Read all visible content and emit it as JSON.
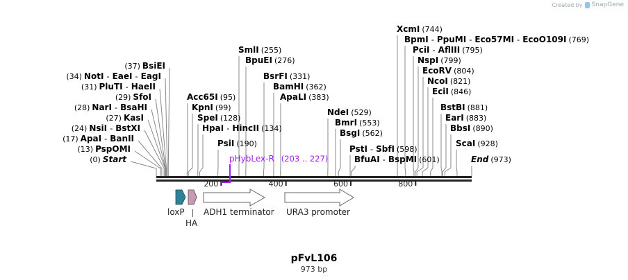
{
  "logo": {
    "created_by": "Created by",
    "brand": "SnapGene"
  },
  "plasmid": {
    "name": "pFvL106",
    "length_label": "973 bp",
    "length": 973
  },
  "ruler": [
    {
      "pos": 200,
      "label": "200"
    },
    {
      "pos": 400,
      "label": "400"
    },
    {
      "pos": 600,
      "label": "600"
    },
    {
      "pos": 800,
      "label": "800"
    }
  ],
  "sites": [
    {
      "names": [
        "Start"
      ],
      "pos": 0,
      "num": "(0)",
      "italic": true
    },
    {
      "names": [
        "PspOMI"
      ],
      "pos": 13,
      "num": "(13)"
    },
    {
      "names": [
        "ApaI",
        "BanII"
      ],
      "pos": 17,
      "num": "(17)"
    },
    {
      "names": [
        "NsiI",
        "BstXI"
      ],
      "pos": 24,
      "num": "(24)"
    },
    {
      "names": [
        "KasI"
      ],
      "pos": 27,
      "num": "(27)"
    },
    {
      "names": [
        "NarI",
        "BsaHI"
      ],
      "pos": 28,
      "num": "(28)"
    },
    {
      "names": [
        "SfoI"
      ],
      "pos": 29,
      "num": "(29)"
    },
    {
      "names": [
        "PluTI",
        "HaeII"
      ],
      "pos": 31,
      "num": "(31)"
    },
    {
      "names": [
        "NotI",
        "EaeI",
        "EagI"
      ],
      "pos": 34,
      "num": "(34)"
    },
    {
      "names": [
        "BsiEI"
      ],
      "pos": 37,
      "num": "(37)"
    },
    {
      "names": [
        "Acc65I"
      ],
      "pos": 95,
      "num": "(95)"
    },
    {
      "names": [
        "KpnI"
      ],
      "pos": 99,
      "num": "(99)"
    },
    {
      "names": [
        "SpeI"
      ],
      "pos": 128,
      "num": "(128)"
    },
    {
      "names": [
        "HpaI",
        "HincII"
      ],
      "pos": 134,
      "num": "(134)"
    },
    {
      "names": [
        "PsiI"
      ],
      "pos": 190,
      "num": "(190)"
    },
    {
      "names": [
        "SmlI"
      ],
      "pos": 255,
      "num": "(255)"
    },
    {
      "names": [
        "BpuEI"
      ],
      "pos": 276,
      "num": "(276)"
    },
    {
      "names": [
        "BsrFI"
      ],
      "pos": 331,
      "num": "(331)"
    },
    {
      "names": [
        "BamHI"
      ],
      "pos": 362,
      "num": "(362)"
    },
    {
      "names": [
        "ApaLI"
      ],
      "pos": 383,
      "num": "(383)"
    },
    {
      "names": [
        "NdeI"
      ],
      "pos": 529,
      "num": "(529)"
    },
    {
      "names": [
        "BmrI"
      ],
      "pos": 553,
      "num": "(553)"
    },
    {
      "names": [
        "BsgI"
      ],
      "pos": 562,
      "num": "(562)"
    },
    {
      "names": [
        "PstI",
        "SbfI"
      ],
      "pos": 598,
      "num": "(598)"
    },
    {
      "names": [
        "BfuAI",
        "BspMI"
      ],
      "pos": 601,
      "num": "(601)"
    },
    {
      "names": [
        "XcmI"
      ],
      "pos": 744,
      "num": "(744)"
    },
    {
      "names": [
        "BpmI",
        "PpuMI",
        "Eco57MI",
        "EcoO109I"
      ],
      "pos": 769,
      "num": "(769)"
    },
    {
      "names": [
        "PciI",
        "AflIII"
      ],
      "pos": 795,
      "num": "(795)"
    },
    {
      "names": [
        "NspI"
      ],
      "pos": 799,
      "num": "(799)"
    },
    {
      "names": [
        "EcoRV"
      ],
      "pos": 804,
      "num": "(804)"
    },
    {
      "names": [
        "NcoI"
      ],
      "pos": 821,
      "num": "(821)"
    },
    {
      "names": [
        "EciI"
      ],
      "pos": 846,
      "num": "(846)"
    },
    {
      "names": [
        "BstBI"
      ],
      "pos": 881,
      "num": "(881)"
    },
    {
      "names": [
        "EarI"
      ],
      "pos": 883,
      "num": "(883)"
    },
    {
      "names": [
        "BbsI"
      ],
      "pos": 890,
      "num": "(890)"
    },
    {
      "names": [
        "ScaI"
      ],
      "pos": 928,
      "num": "(928)"
    },
    {
      "names": [
        "End"
      ],
      "pos": 973,
      "num": "(973)",
      "italic": true
    }
  ],
  "primer": {
    "name": "pHybLex-R",
    "range": "(203 .. 227)",
    "color": "#a020f0"
  },
  "features": [
    {
      "name": "loxP",
      "color": "#2e8199"
    },
    {
      "name": "HA",
      "color": "#c99ab5"
    },
    {
      "name": "ADH1 terminator",
      "color": "#ffffff"
    },
    {
      "name": "URA3 promoter",
      "color": "#ffffff"
    }
  ]
}
